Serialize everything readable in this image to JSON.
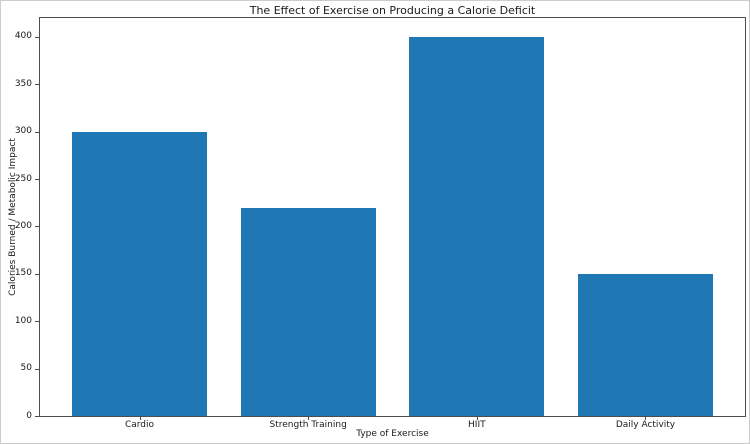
{
  "chart_data": {
    "type": "bar",
    "title": "The Effect of Exercise on Producing a Calorie Deficit",
    "xlabel": "Type of Exercise",
    "ylabel": "Calories Burned / Metabolic Impact",
    "categories": [
      "Cardio",
      "Strength Training",
      "HIIT",
      "Daily Activity"
    ],
    "values": [
      300,
      220,
      400,
      150
    ],
    "yticks": [
      0,
      50,
      100,
      150,
      200,
      250,
      300,
      350,
      400
    ],
    "ylim": [
      0,
      420
    ],
    "xlim": [
      -0.59,
      3.59
    ],
    "bar_width": 0.8,
    "bar_color": "#1f77b4",
    "grid": false,
    "legend": false,
    "spine_color": "#4d4d4d",
    "text_color": "#1a1a1a",
    "background_color": "#ffffff"
  }
}
